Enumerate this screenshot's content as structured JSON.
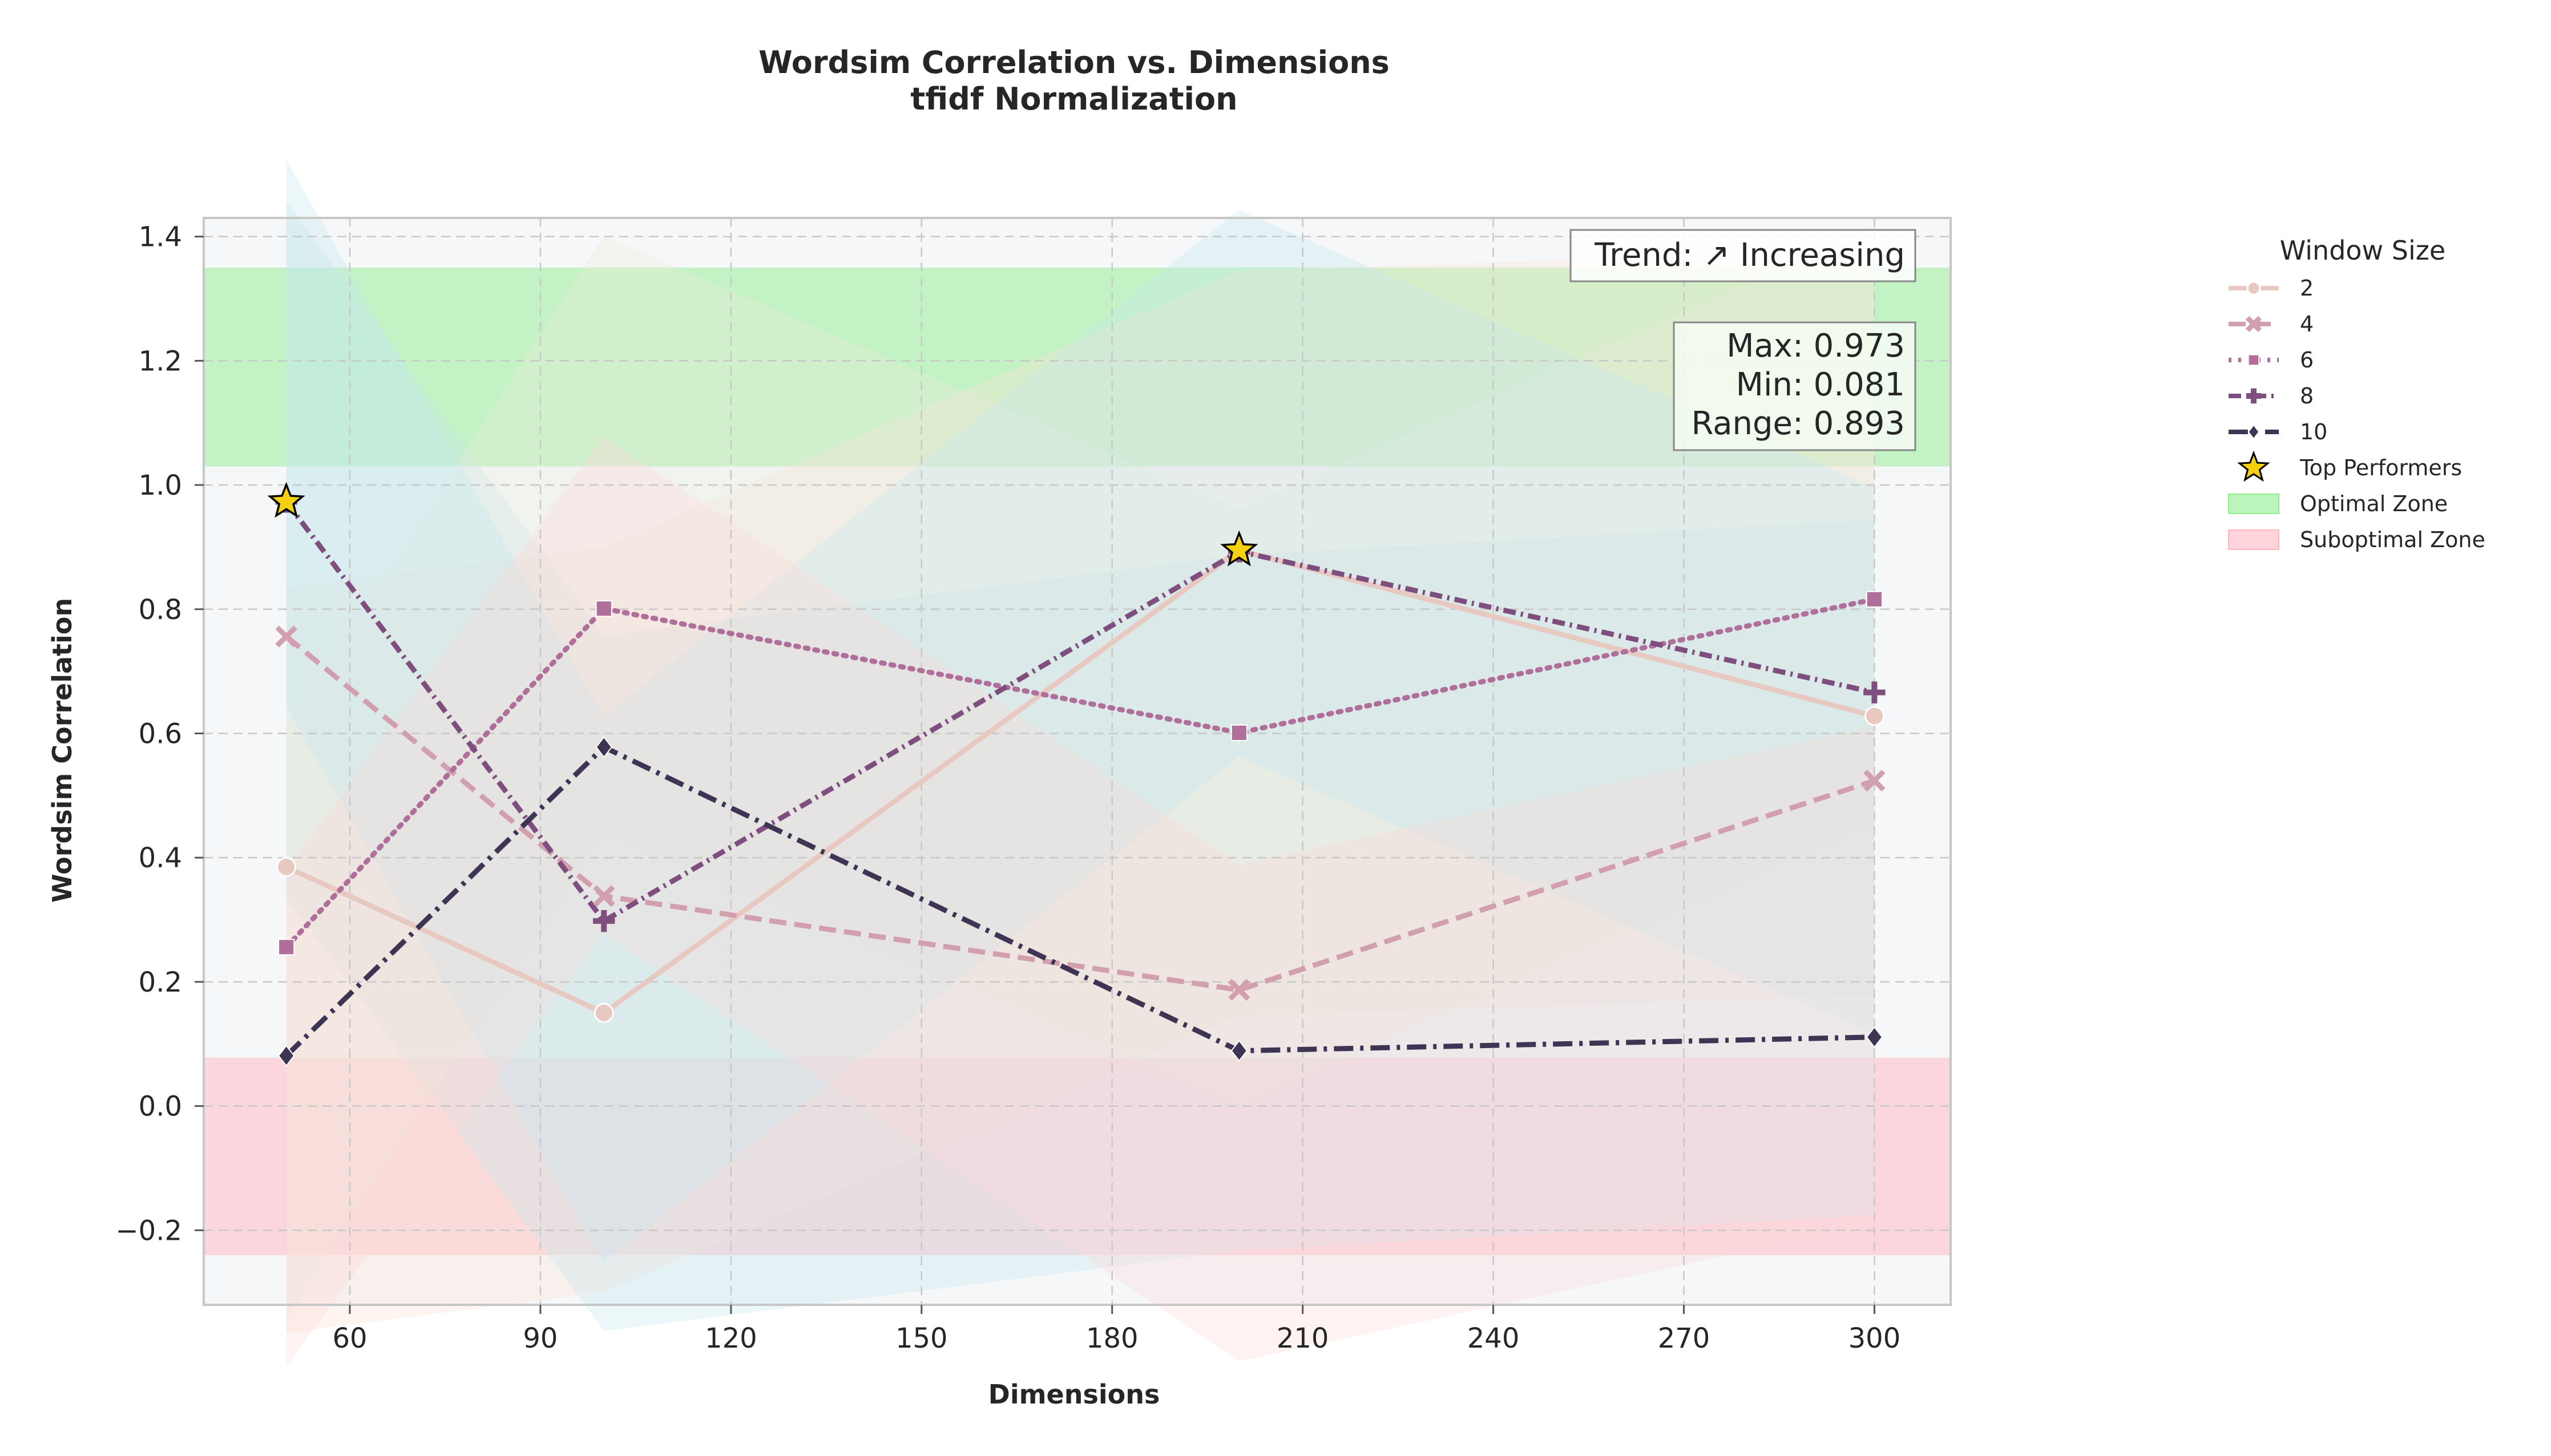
{
  "chart_data": {
    "type": "line",
    "title": "Wordsim Correlation vs. Dimensions",
    "subtitle": "tfidf Normalization",
    "xlabel": "Dimensions",
    "ylabel": "Wordsim Correlation",
    "xlim": [
      37,
      312
    ],
    "ylim": [
      -0.32,
      1.43
    ],
    "xticks": [
      60,
      90,
      120,
      150,
      180,
      210,
      240,
      270,
      300
    ],
    "yticks": [
      -0.2,
      0.0,
      0.2,
      0.4,
      0.6,
      0.8,
      1.0,
      1.2,
      1.4
    ],
    "xtick_labels": [
      "60",
      "90",
      "120",
      "150",
      "180",
      "210",
      "240",
      "270",
      "300"
    ],
    "ytick_labels": [
      "−0.2",
      "0.0",
      "0.2",
      "0.4",
      "0.6",
      "0.8",
      "1.0",
      "1.2",
      "1.4"
    ],
    "grid": true,
    "x": [
      50,
      100,
      200,
      300
    ],
    "series": [
      {
        "name": "2",
        "values": [
          0.385,
          0.15,
          0.895,
          0.628
        ],
        "color": "#e8c9c1",
        "dash": "",
        "marker": "circle"
      },
      {
        "name": "4",
        "values": [
          0.756,
          0.338,
          0.187,
          0.524
        ],
        "color": "#d29fae",
        "dash": "dashed",
        "marker": "x"
      },
      {
        "name": "6",
        "values": [
          0.256,
          0.801,
          0.601,
          0.816
        ],
        "color": "#b06f9a",
        "dash": "dotted",
        "marker": "square"
      },
      {
        "name": "8",
        "values": [
          0.973,
          0.298,
          0.893,
          0.666
        ],
        "color": "#7e4e7e",
        "dash": "dashdot-dense",
        "marker": "plus"
      },
      {
        "name": "10",
        "values": [
          0.081,
          0.578,
          0.089,
          0.111
        ],
        "color": "#3e3453",
        "dash": "dashdot",
        "marker": "diamond"
      }
    ],
    "top_performers": {
      "label": "Top Performers",
      "points": [
        {
          "x": 50,
          "y": 0.973
        },
        {
          "x": 200,
          "y": 0.895
        }
      ],
      "color": "#f5d00e"
    },
    "zones": {
      "optimal": {
        "label": "Optimal Zone",
        "ymin": 1.03,
        "ymax": 1.35,
        "color": "#90ee90"
      },
      "suboptimal": {
        "label": "Suboptimal Zone",
        "ymin": -0.24,
        "ymax": 0.078,
        "color": "#ffb6c1"
      }
    },
    "legend": {
      "title": "Window Size",
      "placement": "outside-right"
    },
    "annotations": {
      "trend": "Trend: ↗ Increasing",
      "stats": [
        "Max: 0.973",
        "Min: 0.081",
        "Range: 0.893"
      ]
    }
  }
}
